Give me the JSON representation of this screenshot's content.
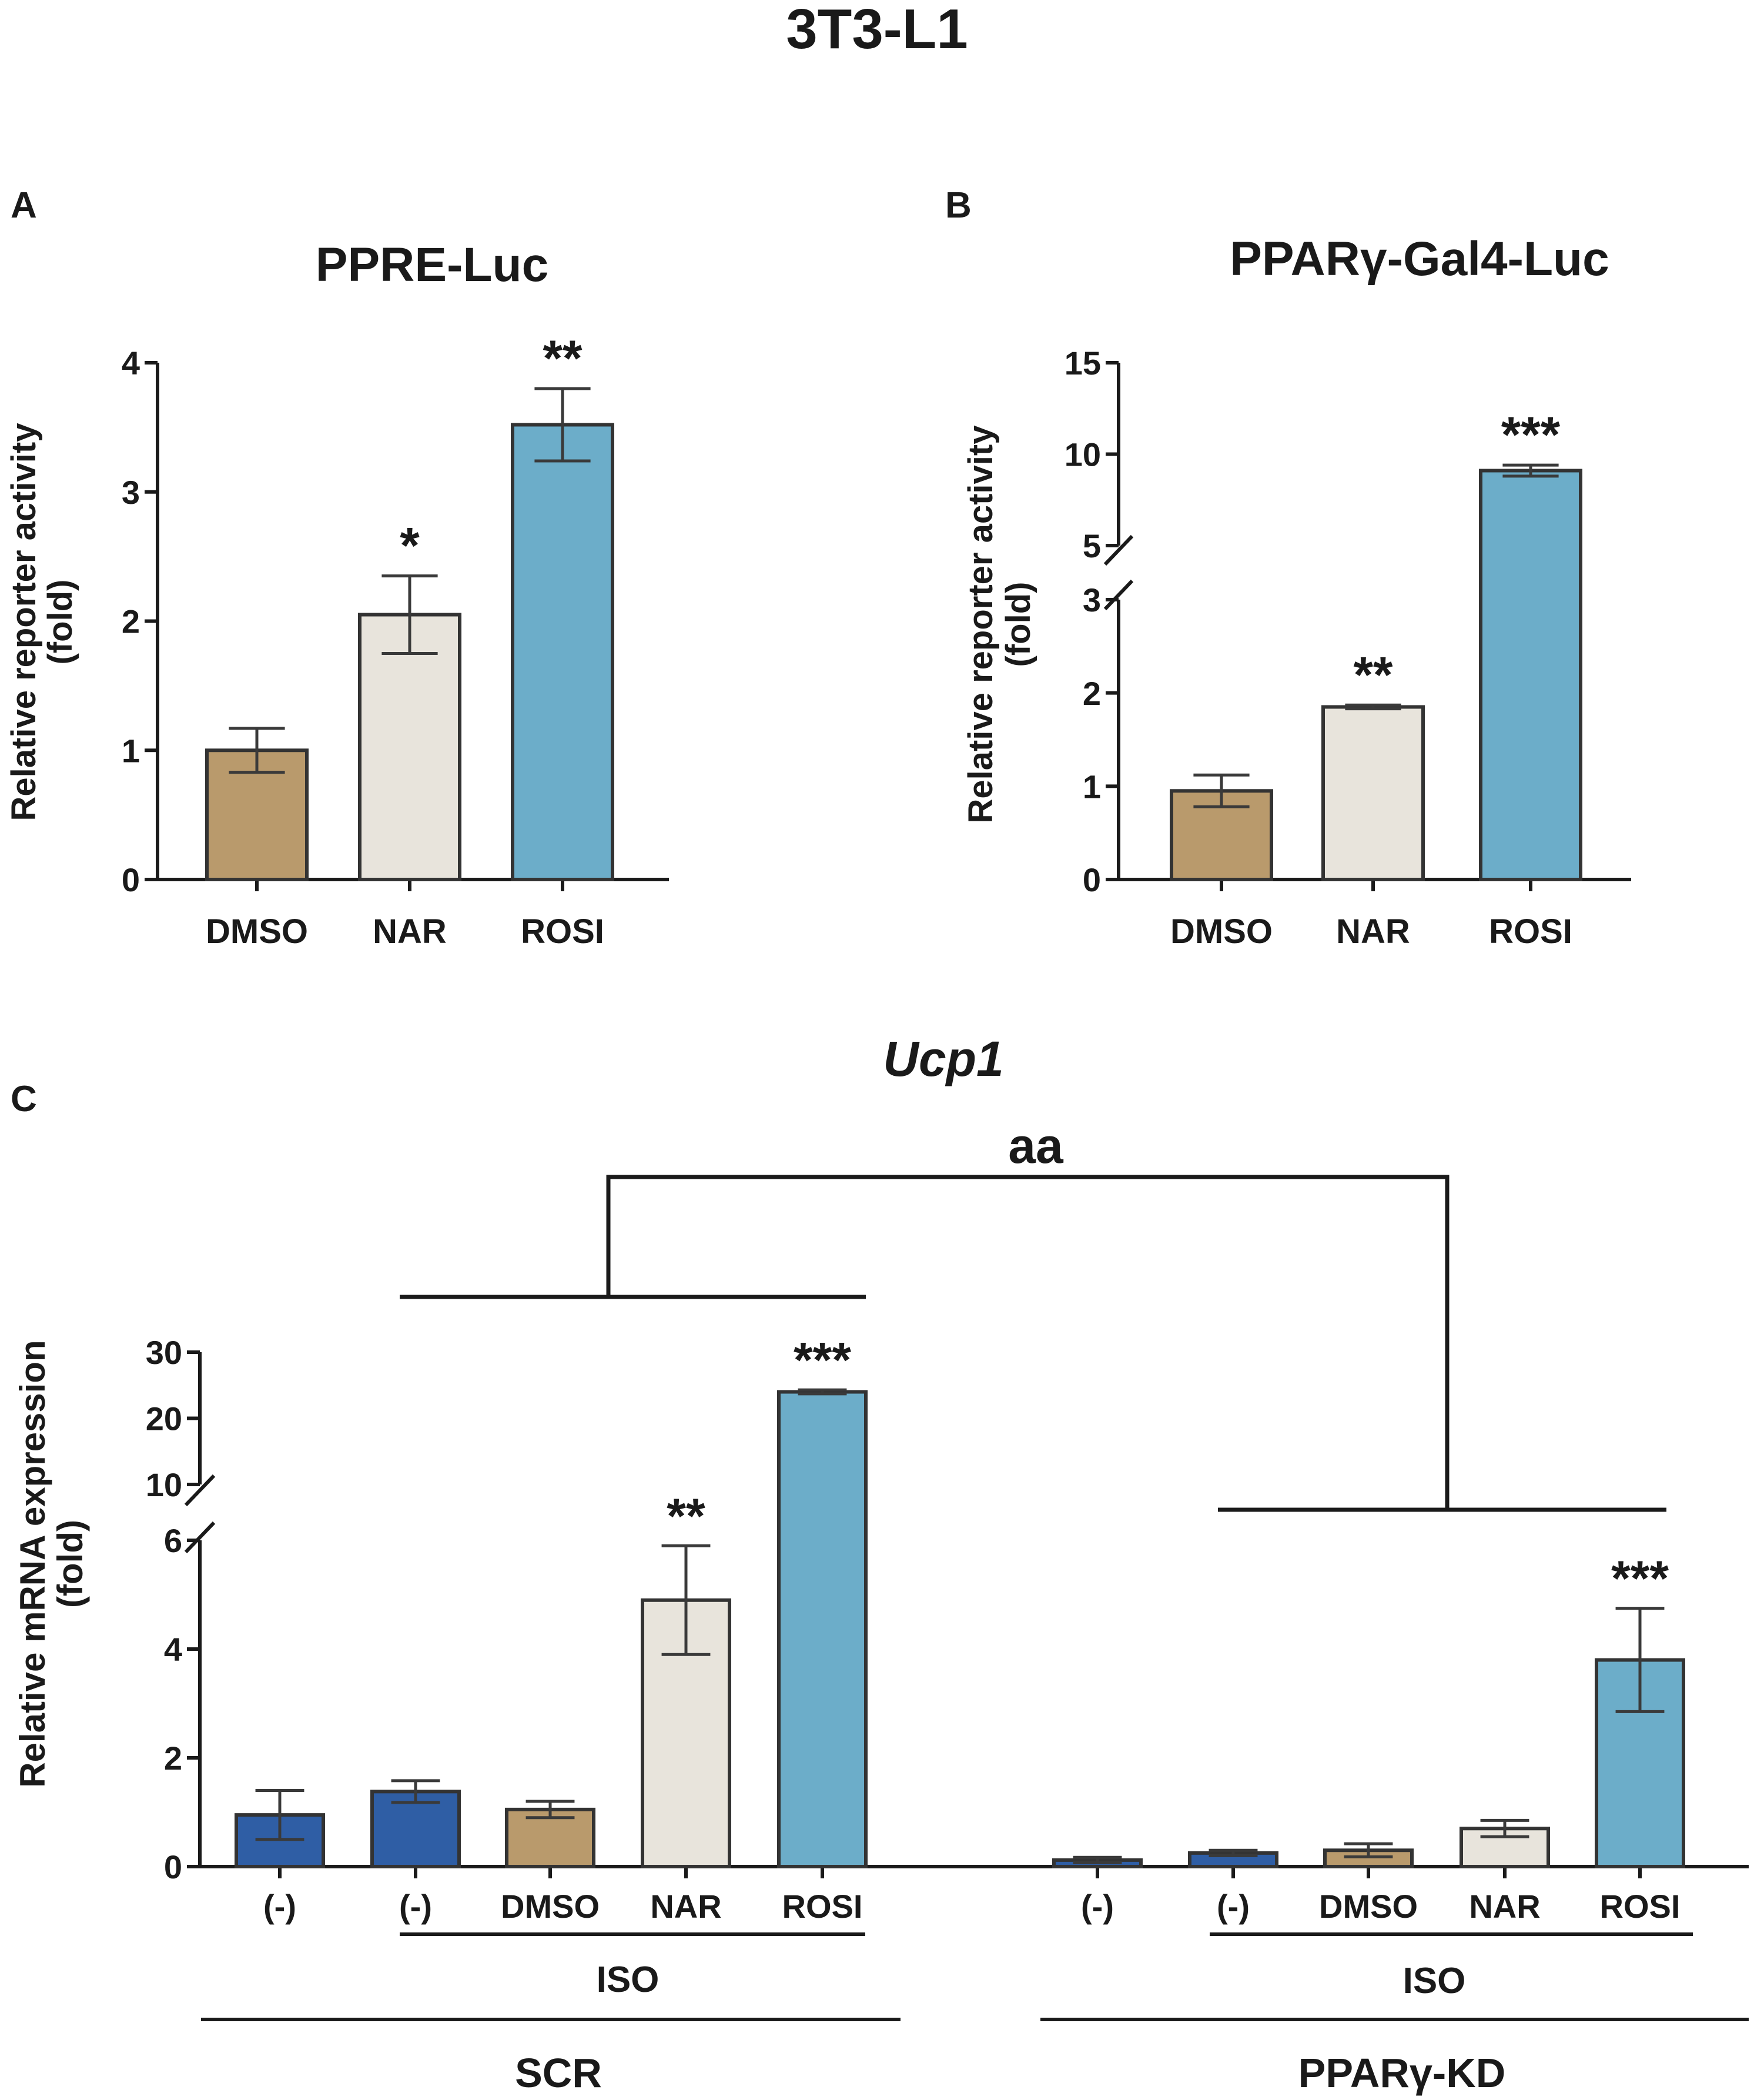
{
  "figure_title": "3T3-L1",
  "colors": {
    "dmso": "#b99a6c",
    "nar": "#e8e4dc",
    "rosi": "#6cadc9",
    "neg": "#2f5ea5",
    "edge": "#333333",
    "axis": "#1a1a1a"
  },
  "chart_data": [
    {
      "panel": "A",
      "type": "bar",
      "title": "PPRE-Luc",
      "ylabel": [
        "Relative reporter activity",
        "(fold)"
      ],
      "xlabel": "",
      "ylim": [
        0,
        4
      ],
      "yticks": [
        "0",
        "1",
        "2",
        "3",
        "4"
      ],
      "categories": [
        "DMSO",
        "NAR",
        "ROSI"
      ],
      "values": [
        1.0,
        2.05,
        3.52
      ],
      "errors": [
        0.17,
        0.3,
        0.28
      ],
      "significance": [
        "",
        "*",
        "**"
      ]
    },
    {
      "panel": "B",
      "type": "bar",
      "title": "PPARγ-Gal4-Luc",
      "ylabel": [
        "Relative reporter activity",
        "(fold)"
      ],
      "xlabel": "",
      "axis_break": true,
      "ylim": [
        0,
        15
      ],
      "yticks": [
        "0",
        "1",
        "2",
        "3",
        "5",
        "10",
        "15"
      ],
      "categories": [
        "DMSO",
        "NAR",
        "ROSI"
      ],
      "values": [
        0.95,
        1.85,
        9.1
      ],
      "errors": [
        0.17,
        0.02,
        0.3
      ],
      "significance": [
        "",
        "**",
        "***"
      ]
    },
    {
      "panel": "C",
      "type": "bar",
      "title": "Ucp1",
      "ylabel": [
        "Relative mRNA expression",
        "(fold)"
      ],
      "xlabel": "",
      "axis_break": true,
      "ylim": [
        0,
        30
      ],
      "yticks": [
        "0",
        "2",
        "4",
        "6",
        "10",
        "20",
        "30"
      ],
      "categories": [
        "(-)",
        "(-)",
        "DMSO",
        "NAR",
        "ROSI",
        "(-)",
        "(-)",
        "DMSO",
        "NAR",
        "ROSI"
      ],
      "values": [
        0.95,
        1.38,
        1.05,
        4.9,
        24.0,
        0.12,
        0.25,
        0.3,
        0.7,
        3.8
      ],
      "errors": [
        0.45,
        0.2,
        0.15,
        1.0,
        0.3,
        0.05,
        0.05,
        0.12,
        0.15,
        0.95
      ],
      "significance": [
        "",
        "",
        "",
        "**",
        "***",
        "",
        "",
        "",
        "",
        "***"
      ],
      "groups": [
        {
          "name": "SCR",
          "treatment": "ISO"
        },
        {
          "name": "PPARγ-KD",
          "treatment": "ISO"
        }
      ],
      "comparison_label": "aa"
    }
  ]
}
